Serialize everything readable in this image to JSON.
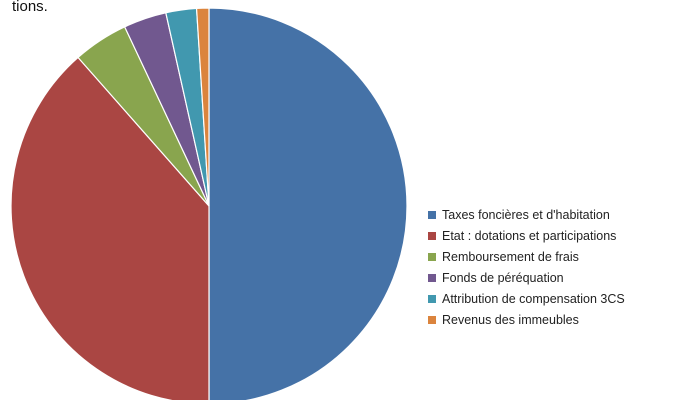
{
  "top_text_fragment": "tions.",
  "chart_data": {
    "type": "pie",
    "title": "",
    "legend_position": "right",
    "start_angle": "12 o'clock, clockwise",
    "slices": [
      {
        "label": "Taxes foncières et d'habitation",
        "value": 50.0,
        "color": "#4572A7"
      },
      {
        "label": "Etat : dotations et participations",
        "value": 38.5,
        "color": "#AA4643"
      },
      {
        "label": "Remboursement de frais",
        "value": 4.5,
        "color": "#89A54E"
      },
      {
        "label": "Fonds de péréquation",
        "value": 3.5,
        "color": "#71588F"
      },
      {
        "label": "Attribution de compensation 3CS",
        "value": 2.5,
        "color": "#4198AF"
      },
      {
        "label": "Revenus des immeubles",
        "value": 1.0,
        "color": "#DB843D"
      }
    ]
  }
}
